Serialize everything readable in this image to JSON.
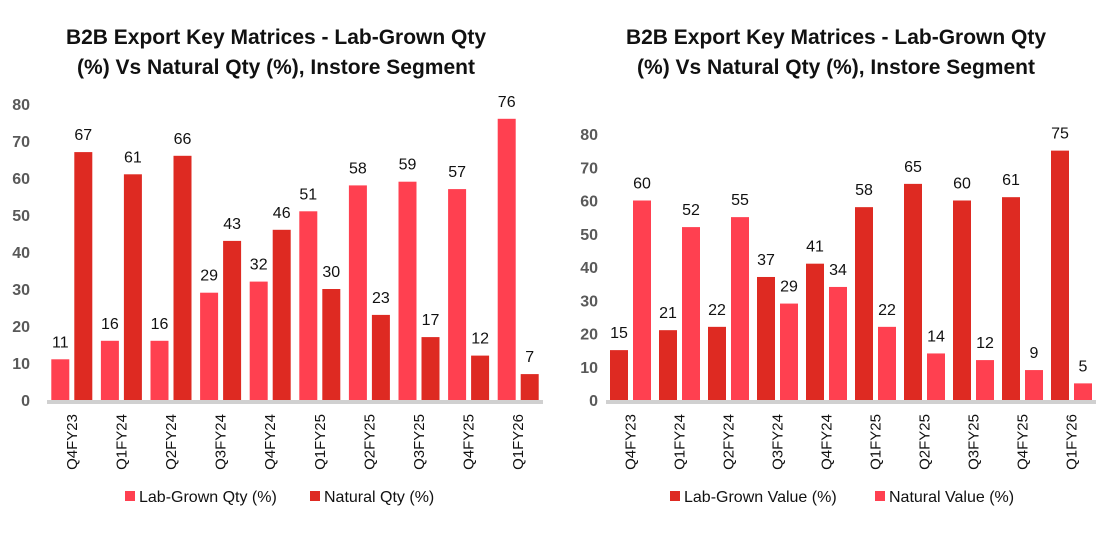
{
  "colors": {
    "dark": "#DE2A22",
    "light": "#FF4050",
    "baseline": "#D0D0D0"
  },
  "chart_data": [
    {
      "type": "bar",
      "title_lines": [
        "B2B Export Key Matrices - Lab-Grown Qty",
        "(%) Vs Natural Qty (%), Instore Segment"
      ],
      "categories": [
        "Q4FY23",
        "Q1FY24",
        "Q2FY24",
        "Q3FY24",
        "Q4FY24",
        "Q1FY25",
        "Q2FY25",
        "Q3FY25",
        "Q4FY25",
        "Q1FY26"
      ],
      "yticks": [
        0,
        10,
        20,
        30,
        40,
        50,
        60,
        70,
        80
      ],
      "ylim": [
        0,
        80
      ],
      "legend_position": "bottom",
      "series": [
        {
          "name": "Lab-Grown Qty (%)",
          "color_key": "light",
          "values": [
            11,
            16,
            16,
            29,
            32,
            51,
            58,
            59,
            57,
            76
          ]
        },
        {
          "name": "Natural Qty (%)",
          "color_key": "dark",
          "values": [
            67,
            61,
            66,
            43,
            46,
            30,
            23,
            17,
            12,
            7
          ]
        }
      ]
    },
    {
      "type": "bar",
      "title_lines": [
        "B2B Export Key Matrices - Lab-Grown Qty",
        "(%) Vs Natural Qty (%), Instore Segment"
      ],
      "categories": [
        "Q4FY23",
        "Q1FY24",
        "Q2FY24",
        "Q3FY24",
        "Q4FY24",
        "Q1FY25",
        "Q2FY25",
        "Q3FY25",
        "Q4FY25",
        "Q1FY26"
      ],
      "yticks": [
        0,
        10,
        20,
        30,
        40,
        50,
        60,
        70,
        80
      ],
      "ylim": [
        0,
        80
      ],
      "legend_position": "bottom",
      "series": [
        {
          "name": "Lab-Grown Value (%)",
          "color_key": "dark",
          "values": [
            15,
            21,
            22,
            37,
            41,
            58,
            65,
            60,
            61,
            75
          ]
        },
        {
          "name": "Natural Value (%)",
          "color_key": "light",
          "values": [
            60,
            52,
            55,
            29,
            34,
            22,
            14,
            12,
            9,
            5
          ]
        }
      ]
    }
  ]
}
